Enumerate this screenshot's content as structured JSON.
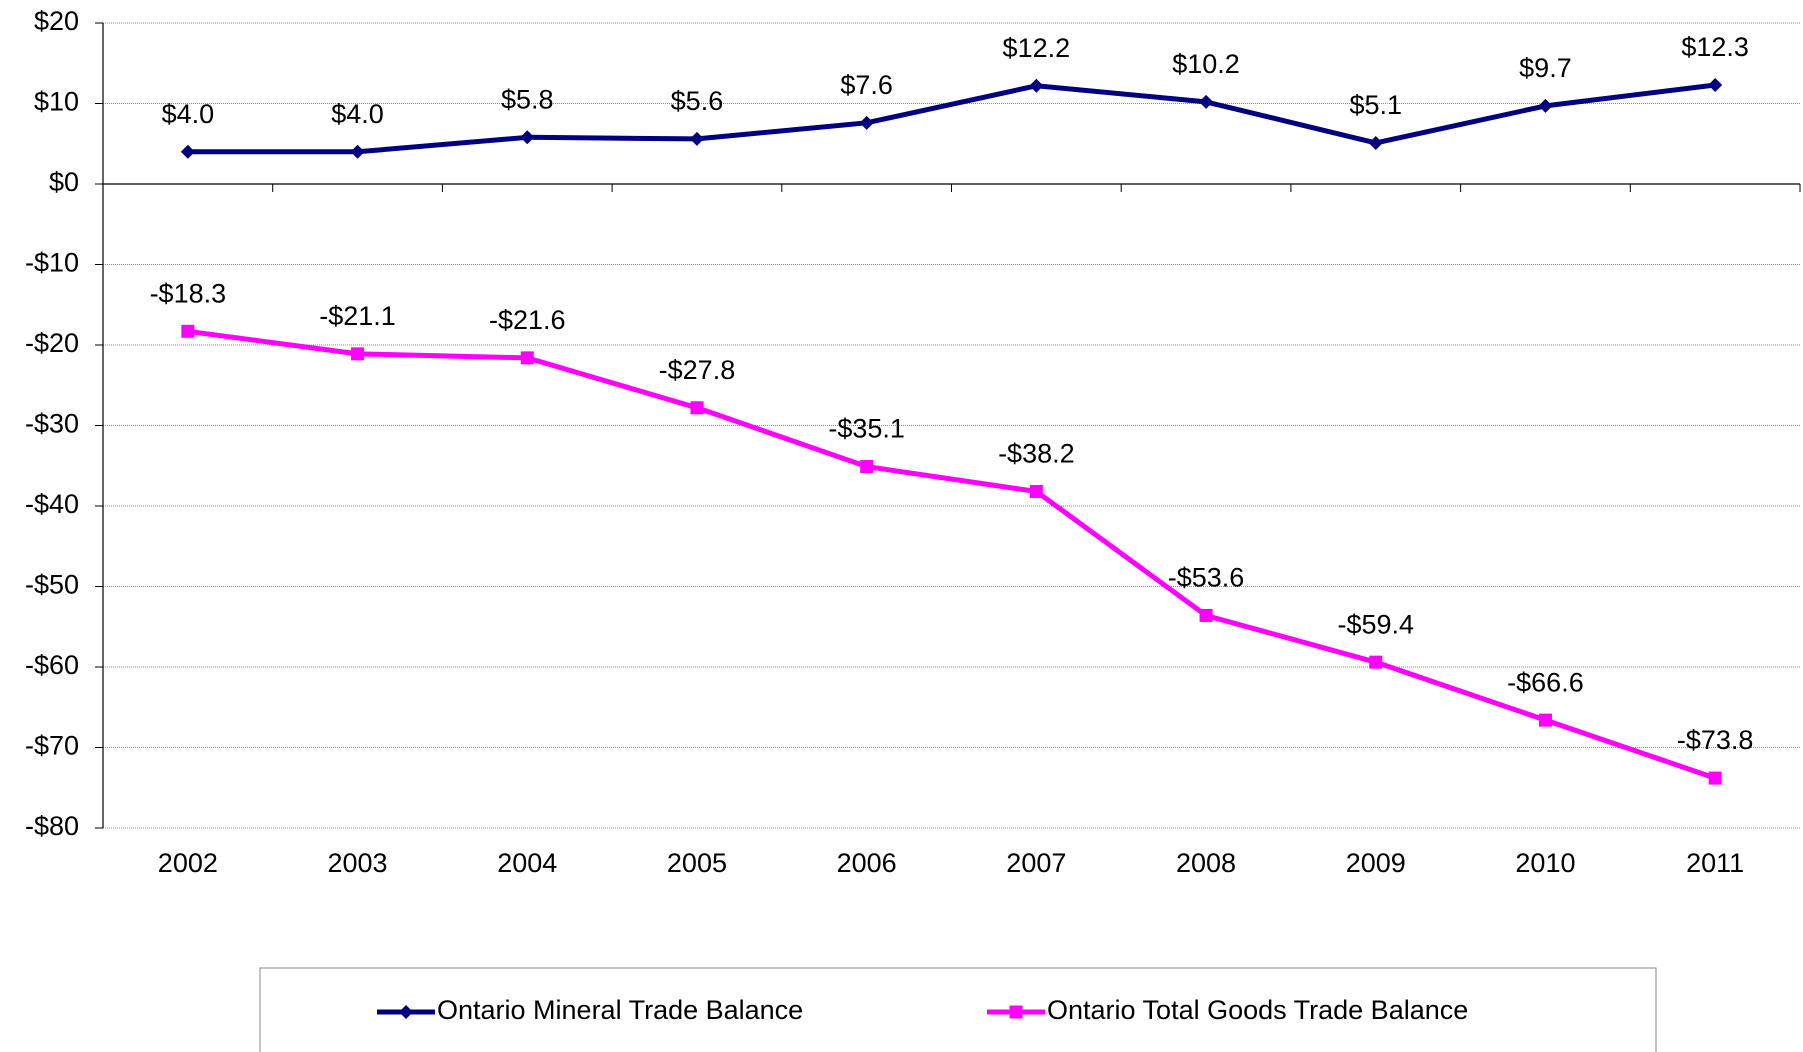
{
  "chart_data": {
    "type": "line",
    "categories": [
      "2002",
      "2003",
      "2004",
      "2005",
      "2006",
      "2007",
      "2008",
      "2009",
      "2010",
      "2011"
    ],
    "series": [
      {
        "name": "Ontario Mineral Trade Balance",
        "color": "#000080",
        "marker": "diamond",
        "values": [
          4.0,
          4.0,
          5.8,
          5.6,
          7.6,
          12.2,
          10.2,
          5.1,
          9.7,
          12.3
        ],
        "value_labels": [
          "$4.0",
          "$4.0",
          "$5.8",
          "$5.6",
          "$7.6",
          "$12.2",
          "$10.2",
          "$5.1",
          "$9.7",
          "$12.3"
        ]
      },
      {
        "name": "Ontario Total Goods Trade Balance",
        "color": "#ff00ff",
        "marker": "square",
        "values": [
          -18.3,
          -21.1,
          -21.6,
          -27.8,
          -35.1,
          -38.2,
          -53.6,
          -59.4,
          -66.6,
          -73.8
        ],
        "value_labels": [
          "-$18.3",
          "-$21.1",
          "-$21.6",
          "-$27.8",
          "-$35.1",
          "-$38.2",
          "-$53.6",
          "-$59.4",
          "-$66.6",
          "-$73.8"
        ]
      }
    ],
    "ylim": [
      -80,
      20
    ],
    "yticks": [
      {
        "value": -80,
        "label": "-$80"
      },
      {
        "value": -70,
        "label": "-$70"
      },
      {
        "value": -60,
        "label": "-$60"
      },
      {
        "value": -50,
        "label": "-$50"
      },
      {
        "value": -40,
        "label": "-$40"
      },
      {
        "value": -30,
        "label": "-$30"
      },
      {
        "value": -20,
        "label": "-$20"
      },
      {
        "value": -10,
        "label": "-$10"
      },
      {
        "value": 0,
        "label": "$0"
      },
      {
        "value": 10,
        "label": "$10"
      },
      {
        "value": 20,
        "label": "$20"
      }
    ],
    "grid": true,
    "legend": "bottom"
  }
}
